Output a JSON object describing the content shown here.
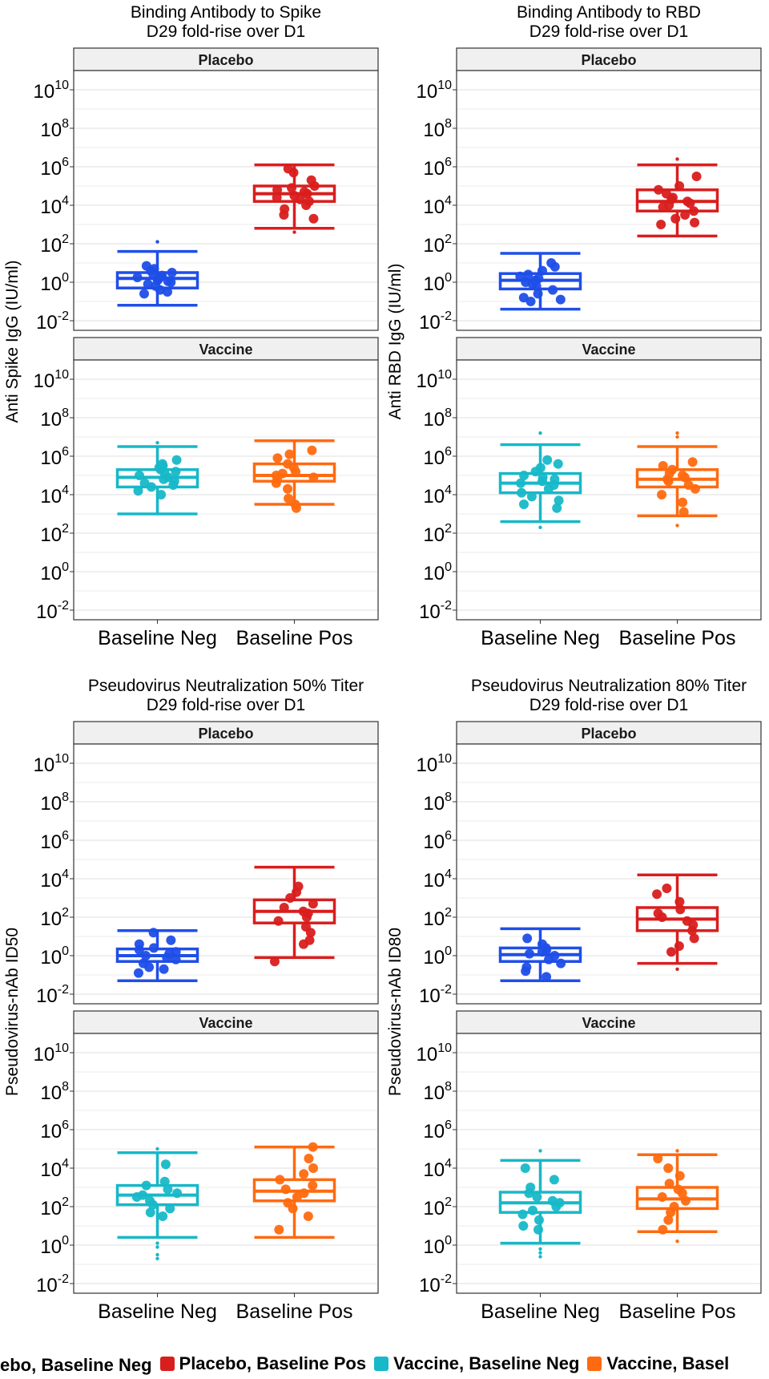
{
  "colors": {
    "placebo_neg": "#1f4ee8",
    "placebo_pos": "#d91e1e",
    "vaccine_neg": "#17b8c8",
    "vaccine_pos": "#ff6a10",
    "strip_bg": "#f0f0f0",
    "grid": "#e5e5e5"
  },
  "legend": [
    {
      "label": "ebo, Baseline Neg",
      "color_key": "placebo_neg"
    },
    {
      "label": "Placebo, Baseline Pos",
      "color_key": "placebo_pos"
    },
    {
      "label": "Vaccine, Baseline Neg",
      "color_key": "vaccine_neg"
    },
    {
      "label": "Vaccine, Basel",
      "color_key": "vaccine_pos"
    }
  ],
  "chart_data": [
    {
      "type": "box",
      "title": "Binding Antibody to Spike",
      "subtitle": "D29 fold-rise over D1",
      "ylabel": "Anti Spike IgG (IU/ml)",
      "y_scale": "log10",
      "ylim_exp": [
        -2.5,
        11
      ],
      "y_ticks": [
        {
          "base": "10",
          "exp": "-2"
        },
        {
          "base": "10",
          "exp": "0"
        },
        {
          "base": "10",
          "exp": "2"
        },
        {
          "base": "10",
          "exp": "4"
        },
        {
          "base": "10",
          "exp": "6"
        },
        {
          "base": "10",
          "exp": "8"
        },
        {
          "base": "10",
          "exp": "10"
        }
      ],
      "categories": [
        "Baseline Neg",
        "Baseline Pos"
      ],
      "panels": [
        {
          "strip": "Placebo",
          "boxes": [
            {
              "category": "Baseline Neg",
              "color_key": "placebo_neg",
              "whisker_low": -1.2,
              "q1": -0.3,
              "median": 0.2,
              "q3": 0.5,
              "whisker_high": 1.6,
              "points": [
                -0.6,
                -0.5,
                -0.4,
                -0.2,
                -0.1,
                0.0,
                0.05,
                0.1,
                0.15,
                0.2,
                0.25,
                0.3,
                0.35,
                0.4,
                0.5,
                0.6,
                0.7,
                0.85
              ],
              "outliers": [
                2.1
              ]
            },
            {
              "category": "Baseline Pos",
              "color_key": "placebo_pos",
              "whisker_low": 2.8,
              "q1": 4.2,
              "median": 4.6,
              "q3": 5.0,
              "whisker_high": 6.1,
              "points": [
                3.3,
                3.5,
                3.8,
                4.0,
                4.2,
                4.3,
                4.4,
                4.5,
                4.6,
                4.7,
                4.8,
                4.9,
                5.0,
                5.3,
                5.7,
                5.9
              ],
              "outliers": [
                2.6
              ]
            }
          ]
        },
        {
          "strip": "Vaccine",
          "boxes": [
            {
              "category": "Baseline Neg",
              "color_key": "vaccine_neg",
              "whisker_low": 3.0,
              "q1": 4.4,
              "median": 4.9,
              "q3": 5.3,
              "whisker_high": 6.5,
              "points": [
                4.0,
                4.2,
                4.4,
                4.5,
                4.6,
                4.7,
                4.8,
                4.9,
                5.0,
                5.1,
                5.2,
                5.3,
                5.4,
                5.5,
                5.6,
                5.8
              ],
              "outliers": [
                6.7
              ]
            },
            {
              "category": "Baseline Pos",
              "color_key": "vaccine_pos",
              "whisker_low": 3.5,
              "q1": 4.7,
              "median": 5.0,
              "q3": 5.6,
              "whisker_high": 6.8,
              "points": [
                3.3,
                3.5,
                3.8,
                4.3,
                4.6,
                4.8,
                4.9,
                5.0,
                5.1,
                5.2,
                5.4,
                5.6,
                5.9,
                6.1,
                6.3
              ],
              "outliers": []
            }
          ]
        }
      ]
    },
    {
      "type": "box",
      "title": "Binding Antibody to RBD",
      "subtitle": "D29 fold-rise over D1",
      "ylabel": "Anti RBD IgG (IU/ml)",
      "y_scale": "log10",
      "ylim_exp": [
        -2.5,
        11
      ],
      "y_ticks": [
        {
          "base": "10",
          "exp": "-2"
        },
        {
          "base": "10",
          "exp": "0"
        },
        {
          "base": "10",
          "exp": "2"
        },
        {
          "base": "10",
          "exp": "4"
        },
        {
          "base": "10",
          "exp": "6"
        },
        {
          "base": "10",
          "exp": "8"
        },
        {
          "base": "10",
          "exp": "10"
        }
      ],
      "categories": [
        "Baseline Neg",
        "Baseline Pos"
      ],
      "panels": [
        {
          "strip": "Placebo",
          "boxes": [
            {
              "category": "Baseline Neg",
              "color_key": "placebo_neg",
              "whisker_low": -1.4,
              "q1": -0.35,
              "median": 0.1,
              "q3": 0.45,
              "whisker_high": 1.5,
              "points": [
                -1.0,
                -0.9,
                -0.8,
                -0.6,
                -0.4,
                -0.2,
                -0.1,
                0.0,
                0.1,
                0.2,
                0.3,
                0.4,
                0.6,
                0.8,
                1.0
              ],
              "outliers": []
            },
            {
              "category": "Baseline Pos",
              "color_key": "placebo_pos",
              "whisker_low": 2.4,
              "q1": 3.7,
              "median": 4.2,
              "q3": 4.8,
              "whisker_high": 6.1,
              "points": [
                3.0,
                3.1,
                3.3,
                3.5,
                3.7,
                3.9,
                4.0,
                4.1,
                4.2,
                4.3,
                4.4,
                4.6,
                4.8,
                5.0,
                5.5
              ],
              "outliers": [
                6.4
              ]
            }
          ]
        },
        {
          "strip": "Vaccine",
          "boxes": [
            {
              "category": "Baseline Neg",
              "color_key": "vaccine_neg",
              "whisker_low": 2.6,
              "q1": 4.1,
              "median": 4.6,
              "q3": 5.1,
              "whisker_high": 6.6,
              "points": [
                3.3,
                3.5,
                3.7,
                3.9,
                4.1,
                4.3,
                4.5,
                4.6,
                4.7,
                4.8,
                4.9,
                5.0,
                5.2,
                5.4,
                5.6,
                5.8
              ],
              "outliers": [
                2.3,
                7.2
              ]
            },
            {
              "category": "Baseline Pos",
              "color_key": "vaccine_pos",
              "whisker_low": 2.9,
              "q1": 4.4,
              "median": 4.8,
              "q3": 5.3,
              "whisker_high": 6.5,
              "points": [
                3.1,
                3.6,
                4.0,
                4.3,
                4.5,
                4.7,
                4.8,
                4.9,
                5.0,
                5.1,
                5.3,
                5.5,
                5.7
              ],
              "outliers": [
                2.4,
                7.0,
                7.2
              ]
            }
          ]
        }
      ]
    },
    {
      "type": "box",
      "title": "Pseudovirus Neutralization 50% Titer",
      "subtitle": "D29 fold-rise over D1",
      "ylabel": "Pseudovirus-nAb ID50",
      "y_scale": "log10",
      "ylim_exp": [
        -2.5,
        11
      ],
      "y_ticks": [
        {
          "base": "10",
          "exp": "-2"
        },
        {
          "base": "10",
          "exp": "0"
        },
        {
          "base": "10",
          "exp": "2"
        },
        {
          "base": "10",
          "exp": "4"
        },
        {
          "base": "10",
          "exp": "6"
        },
        {
          "base": "10",
          "exp": "8"
        },
        {
          "base": "10",
          "exp": "10"
        }
      ],
      "categories": [
        "Baseline Neg",
        "Baseline Pos"
      ],
      "panels": [
        {
          "strip": "Placebo",
          "boxes": [
            {
              "category": "Baseline Neg",
              "color_key": "placebo_neg",
              "whisker_low": -1.3,
              "q1": -0.3,
              "median": 0.0,
              "q3": 0.35,
              "whisker_high": 1.3,
              "points": [
                -0.9,
                -0.7,
                -0.6,
                -0.4,
                -0.2,
                -0.1,
                0.0,
                0.1,
                0.2,
                0.3,
                0.4,
                0.6,
                0.8,
                1.2
              ],
              "outliers": []
            },
            {
              "category": "Baseline Pos",
              "color_key": "placebo_pos",
              "whisker_low": -0.1,
              "q1": 1.7,
              "median": 2.3,
              "q3": 2.9,
              "whisker_high": 4.6,
              "points": [
                -0.3,
                0.6,
                0.8,
                1.2,
                1.5,
                1.8,
                2.0,
                2.2,
                2.3,
                2.5,
                2.7,
                3.0,
                3.3,
                3.6
              ],
              "outliers": []
            }
          ]
        },
        {
          "strip": "Vaccine",
          "boxes": [
            {
              "category": "Baseline Neg",
              "color_key": "vaccine_neg",
              "whisker_low": 0.4,
              "q1": 2.1,
              "median": 2.6,
              "q3": 3.1,
              "whisker_high": 4.8,
              "points": [
                1.5,
                1.7,
                1.9,
                2.1,
                2.3,
                2.5,
                2.6,
                2.7,
                2.9,
                3.1,
                3.3,
                4.2
              ],
              "outliers": [
                -0.7,
                -0.5,
                -0.1,
                0.1,
                5.0
              ]
            },
            {
              "category": "Baseline Pos",
              "color_key": "vaccine_pos",
              "whisker_low": 0.4,
              "q1": 2.3,
              "median": 2.8,
              "q3": 3.4,
              "whisker_high": 5.1,
              "points": [
                0.8,
                1.5,
                1.9,
                2.2,
                2.5,
                2.7,
                2.9,
                3.1,
                3.4,
                3.7,
                4.0,
                4.5,
                5.1
              ],
              "outliers": []
            }
          ]
        }
      ]
    },
    {
      "type": "box",
      "title": "Pseudovirus Neutralization 80% Titer",
      "subtitle": "D29 fold-rise over D1",
      "ylabel": "Pseudovirus-nAb ID80",
      "y_scale": "log10",
      "ylim_exp": [
        -2.5,
        11
      ],
      "y_ticks": [
        {
          "base": "10",
          "exp": "-2"
        },
        {
          "base": "10",
          "exp": "0"
        },
        {
          "base": "10",
          "exp": "2"
        },
        {
          "base": "10",
          "exp": "4"
        },
        {
          "base": "10",
          "exp": "6"
        },
        {
          "base": "10",
          "exp": "8"
        },
        {
          "base": "10",
          "exp": "10"
        }
      ],
      "categories": [
        "Baseline Neg",
        "Baseline Pos"
      ],
      "panels": [
        {
          "strip": "Placebo",
          "boxes": [
            {
              "category": "Baseline Neg",
              "color_key": "placebo_neg",
              "whisker_low": -1.3,
              "q1": -0.3,
              "median": 0.05,
              "q3": 0.4,
              "whisker_high": 1.4,
              "points": [
                -1.1,
                -0.8,
                -0.6,
                -0.4,
                -0.2,
                0.0,
                0.1,
                0.2,
                0.3,
                0.4,
                0.6,
                0.9
              ],
              "outliers": []
            },
            {
              "category": "Baseline Pos",
              "color_key": "placebo_pos",
              "whisker_low": -0.4,
              "q1": 1.3,
              "median": 1.9,
              "q3": 2.5,
              "whisker_high": 4.2,
              "points": [
                0.2,
                0.5,
                0.9,
                1.3,
                1.6,
                1.8,
                2.0,
                2.2,
                2.4,
                2.8,
                3.2,
                3.5
              ],
              "outliers": [
                -0.7
              ]
            }
          ]
        },
        {
          "strip": "Vaccine",
          "boxes": [
            {
              "category": "Baseline Neg",
              "color_key": "vaccine_neg",
              "whisker_low": 0.1,
              "q1": 1.7,
              "median": 2.2,
              "q3": 2.75,
              "whisker_high": 4.4,
              "points": [
                0.8,
                1.0,
                1.3,
                1.6,
                1.8,
                2.0,
                2.2,
                2.3,
                2.5,
                2.7,
                3.0,
                3.4,
                4.0
              ],
              "outliers": [
                -0.6,
                -0.4,
                -0.2,
                4.9
              ]
            },
            {
              "category": "Baseline Pos",
              "color_key": "vaccine_pos",
              "whisker_low": 0.7,
              "q1": 1.9,
              "median": 2.4,
              "q3": 3.0,
              "whisker_high": 4.7,
              "points": [
                0.8,
                1.3,
                1.7,
                2.0,
                2.3,
                2.5,
                2.7,
                2.9,
                3.2,
                3.6,
                4.0,
                4.5
              ],
              "outliers": [
                0.2,
                4.9
              ]
            }
          ]
        }
      ]
    }
  ]
}
